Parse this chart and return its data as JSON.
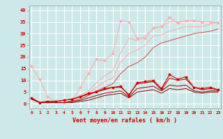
{
  "title": "",
  "xlabel": "Vent moyen/en rafales ( km/h )",
  "background_color": "#cce8e8",
  "grid_color": "#ffffff",
  "x_values": [
    0,
    1,
    2,
    3,
    4,
    5,
    6,
    7,
    8,
    9,
    10,
    11,
    12,
    13,
    14,
    15,
    16,
    17,
    18,
    19,
    20,
    21,
    22,
    23
  ],
  "xlim": [
    -0.3,
    23.3
  ],
  "ylim": [
    -2,
    42
  ],
  "yticks": [
    0,
    5,
    10,
    15,
    20,
    25,
    30,
    35,
    40
  ],
  "series": [
    {
      "y": [
        16,
        10.5,
        3,
        1,
        0.5,
        1,
        7,
        13,
        19,
        18.5,
        21.5,
        35.5,
        35,
        28,
        28,
        32.5,
        33,
        37,
        34.5,
        35.5,
        35.5,
        35,
        35,
        34.5
      ],
      "color": "#ffaaaa",
      "linewidth": 0.7,
      "marker": "D",
      "markersize": 1.5,
      "zorder": 2
    },
    {
      "y": [
        2,
        1,
        0.5,
        0.5,
        0.5,
        1.5,
        3.5,
        5.5,
        9,
        12,
        14,
        22,
        28,
        27,
        29,
        32,
        33,
        35,
        35,
        35.5,
        35.5,
        35,
        35,
        34.5
      ],
      "color": "#ffaaaa",
      "linewidth": 0.7,
      "marker": null,
      "markersize": 0,
      "zorder": 2
    },
    {
      "y": [
        2.5,
        0.5,
        0.5,
        0.5,
        0.5,
        1.5,
        2.5,
        4.5,
        7,
        9.5,
        11,
        18,
        21.5,
        23,
        25,
        29,
        29.5,
        31,
        32,
        33,
        33,
        33,
        34,
        35
      ],
      "color": "#ffaaaa",
      "linewidth": 0.7,
      "marker": null,
      "markersize": 0,
      "zorder": 2
    },
    {
      "y": [
        2,
        0.5,
        0.5,
        0.5,
        0.5,
        1,
        2,
        3.5,
        5.5,
        7,
        8.5,
        13,
        16,
        17.5,
        20,
        24,
        26,
        27,
        28,
        29,
        30,
        30.5,
        31,
        32
      ],
      "color": "#dd4444",
      "linewidth": 0.7,
      "marker": null,
      "markersize": 0,
      "zorder": 3
    },
    {
      "y": [
        2.5,
        0.5,
        1,
        1,
        1.5,
        2,
        3,
        4.5,
        5,
        6.5,
        7,
        7.5,
        3.5,
        9,
        9.5,
        10,
        6.5,
        12.5,
        10.5,
        11.5,
        7,
        6.5,
        7,
        6
      ],
      "color": "#cc0000",
      "linewidth": 0.8,
      "marker": "D",
      "markersize": 1.5,
      "zorder": 4
    },
    {
      "y": [
        2.5,
        0.5,
        1,
        1,
        1.5,
        2,
        3,
        4,
        5,
        6,
        7,
        7,
        4,
        8.5,
        9,
        9.5,
        6,
        11,
        10,
        10.5,
        7,
        6,
        6.5,
        6
      ],
      "color": "#cc0000",
      "linewidth": 0.8,
      "marker": null,
      "markersize": 0,
      "zorder": 4
    },
    {
      "y": [
        2.5,
        0.5,
        0.5,
        0.5,
        0.5,
        1,
        1.5,
        2.5,
        3.5,
        4.5,
        5,
        5.5,
        3,
        6.5,
        7,
        7.5,
        5.5,
        8,
        7.5,
        8,
        5.5,
        5,
        5.5,
        5.5
      ],
      "color": "#880000",
      "linewidth": 0.7,
      "marker": null,
      "markersize": 0,
      "zorder": 3
    },
    {
      "y": [
        2,
        0.5,
        0.5,
        0.5,
        0.5,
        0.5,
        1,
        1.5,
        2.5,
        3.5,
        4,
        4.5,
        2.5,
        5,
        5.5,
        6,
        4.5,
        6.5,
        6,
        6.5,
        5,
        4.5,
        5,
        5
      ],
      "color": "#880000",
      "linewidth": 0.7,
      "marker": null,
      "markersize": 0,
      "zorder": 3
    }
  ],
  "tick_labels": [
    "0",
    "1",
    "2",
    "3",
    "4",
    "5",
    "6",
    "7",
    "8",
    "9",
    "10",
    "11",
    "12",
    "13",
    "14",
    "15",
    "16",
    "17",
    "18",
    "19",
    "20",
    "21",
    "22",
    "23"
  ],
  "label_fontsize": 4.5,
  "ylabel_fontsize": 5.0,
  "xlabel_fontsize": 6.0
}
